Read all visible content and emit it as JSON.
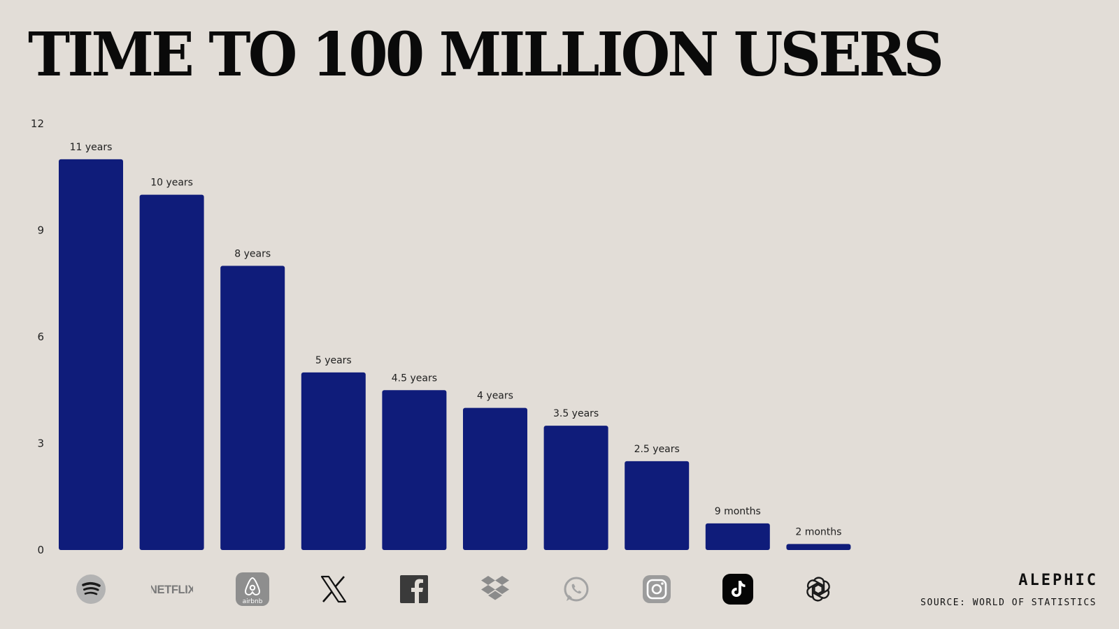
{
  "title": "TIME TO 100 MILLION USERS",
  "brand": "ALEPHIC",
  "source": "SOURCE: WORLD OF STATISTICS",
  "colors": {
    "background": "#e2ddd7",
    "bar": "#0f1c7a",
    "text": "#0a0a0a"
  },
  "chart_data": {
    "type": "bar",
    "title": "TIME TO 100 MILLION USERS",
    "xlabel": "",
    "ylabel": "",
    "ylim": [
      0,
      12
    ],
    "yticks": [
      0,
      3,
      6,
      9,
      12
    ],
    "grid": false,
    "legend": "none",
    "categories": [
      "Spotify",
      "Netflix",
      "Airbnb",
      "X",
      "Facebook",
      "Dropbox",
      "WhatsApp",
      "Instagram",
      "TikTok",
      "ChatGPT"
    ],
    "values": [
      11,
      10,
      8,
      5,
      4.5,
      4,
      3.5,
      2.5,
      0.75,
      0.17
    ],
    "data_labels": [
      "11 years",
      "10 years",
      "8 years",
      "5 years",
      "4.5 years",
      "4 years",
      "3.5 years",
      "2.5 years",
      "9 months",
      "2 months"
    ],
    "category_icons": [
      "spotify-icon",
      "netflix-logo",
      "airbnb-icon",
      "x-icon",
      "facebook-icon",
      "dropbox-icon",
      "whatsapp-icon",
      "instagram-icon",
      "tiktok-icon",
      "openai-icon"
    ]
  },
  "icon_text": {
    "netflix": "NETFLIX",
    "airbnb": "airbnb"
  }
}
